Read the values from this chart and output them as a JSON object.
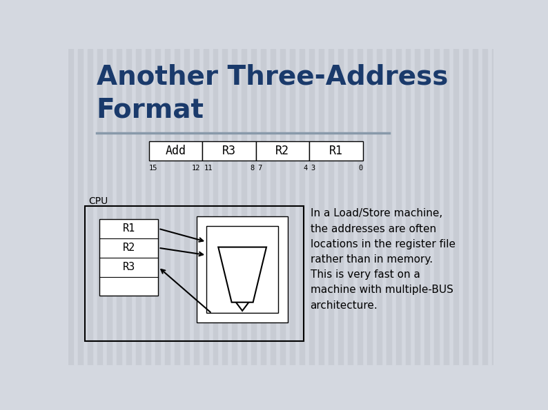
{
  "title_line1": "Another Three-Address",
  "title_line2": "Format",
  "title_color": "#1a3a6b",
  "title_fontsize": 28,
  "bg_color": "#d4d8e0",
  "stripe_color": "#c8ccd4",
  "instruction_fields": [
    "Add",
    "R3",
    "R2",
    "R1"
  ],
  "bit_labels_left": [
    "15",
    "12",
    "11",
    "8",
    "7",
    "4",
    "3",
    "0"
  ],
  "cpu_label": "CPU",
  "register_labels": [
    "R1",
    "R2",
    "R3"
  ],
  "body_text": "In a Load/Store machine,\nthe addresses are often\nlocations in the register file\nrather than in memory.\nThis is very fast on a\nmachine with multiple-BUS\narchitecture.",
  "body_fontsize": 11,
  "separator_color": "#8899aa"
}
